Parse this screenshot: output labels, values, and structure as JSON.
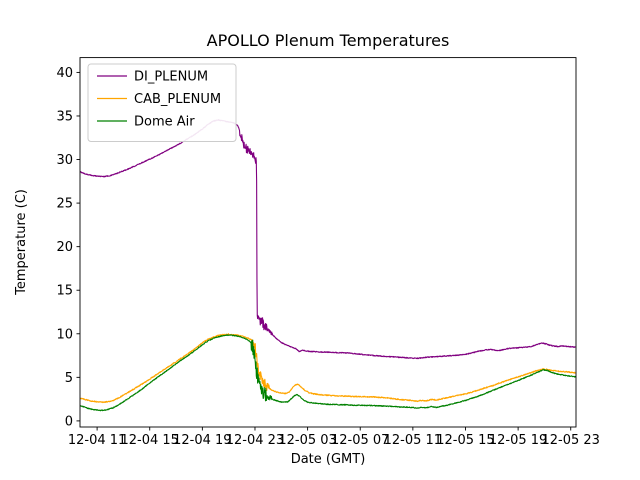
{
  "chart_data": {
    "type": "line",
    "title": "APOLLO Plenum Temperatures",
    "xlabel": "Date (GMT)",
    "ylabel": "Temperature (C)",
    "xlim": [
      -1.3,
      36.4
    ],
    "ylim": [
      -0.7,
      41.7
    ],
    "grid": false,
    "legend_position": "upper-left",
    "y_ticks": [
      0,
      5,
      10,
      15,
      20,
      25,
      30,
      35,
      40
    ],
    "x_ticks": [
      {
        "t": 0,
        "label": "12-04 11"
      },
      {
        "t": 4,
        "label": "12-04 15"
      },
      {
        "t": 8,
        "label": "12-04 19"
      },
      {
        "t": 12,
        "label": "12-04 23"
      },
      {
        "t": 16,
        "label": "12-05 03"
      },
      {
        "t": 20,
        "label": "12-05 07"
      },
      {
        "t": 24,
        "label": "12-05 11"
      },
      {
        "t": 28,
        "label": "12-05 15"
      },
      {
        "t": 32,
        "label": "12-05 19"
      },
      {
        "t": 36,
        "label": "12-05 23"
      }
    ],
    "series": [
      {
        "name": "DI_PLENUM",
        "color": "#800080",
        "base_noise": 0.05,
        "noise": [
          {
            "t0": 10.85,
            "t1": 12.12,
            "amp": 0.5
          },
          {
            "t0": 12.16,
            "t1": 12.9,
            "amp": 0.6
          },
          {
            "t0": 12.9,
            "t1": 13.4,
            "amp": 0.25
          }
        ],
        "anchors": [
          [
            -1.3,
            28.6
          ],
          [
            -0.9,
            28.35
          ],
          [
            -0.5,
            28.2
          ],
          [
            0,
            28.1
          ],
          [
            0.5,
            28.05
          ],
          [
            1,
            28.15
          ],
          [
            1.5,
            28.4
          ],
          [
            2,
            28.7
          ],
          [
            2.5,
            29.0
          ],
          [
            3,
            29.35
          ],
          [
            3.5,
            29.7
          ],
          [
            4,
            30.05
          ],
          [
            4.5,
            30.4
          ],
          [
            5,
            30.8
          ],
          [
            5.5,
            31.2
          ],
          [
            6,
            31.6
          ],
          [
            6.5,
            32.0
          ],
          [
            7,
            32.5
          ],
          [
            7.5,
            32.95
          ],
          [
            8,
            33.5
          ],
          [
            8.4,
            34.0
          ],
          [
            8.8,
            34.4
          ],
          [
            9.2,
            34.55
          ],
          [
            9.6,
            34.45
          ],
          [
            10,
            34.3
          ],
          [
            10.4,
            34.2
          ],
          [
            10.7,
            33.9
          ],
          [
            10.9,
            33.0
          ],
          [
            11.1,
            31.8
          ],
          [
            11.3,
            31.3
          ],
          [
            11.6,
            30.8
          ],
          [
            11.9,
            30.3
          ],
          [
            12.05,
            29.9
          ],
          [
            12.12,
            29.7
          ],
          [
            12.16,
            11.9
          ],
          [
            12.3,
            11.3
          ],
          [
            12.5,
            11.6
          ],
          [
            12.7,
            10.9
          ],
          [
            12.9,
            10.6
          ],
          [
            13.2,
            10.1
          ],
          [
            13.6,
            9.5
          ],
          [
            14,
            9.0
          ],
          [
            14.4,
            8.7
          ],
          [
            14.8,
            8.45
          ],
          [
            15.1,
            8.3
          ],
          [
            15.35,
            7.95
          ],
          [
            15.6,
            8.1
          ],
          [
            16,
            8.0
          ],
          [
            16.5,
            7.95
          ],
          [
            17,
            7.9
          ],
          [
            17.5,
            7.9
          ],
          [
            18,
            7.85
          ],
          [
            19,
            7.8
          ],
          [
            20,
            7.65
          ],
          [
            21,
            7.5
          ],
          [
            22,
            7.4
          ],
          [
            23,
            7.3
          ],
          [
            24,
            7.2
          ],
          [
            24.5,
            7.2
          ],
          [
            25,
            7.3
          ],
          [
            26,
            7.4
          ],
          [
            27,
            7.5
          ],
          [
            27.5,
            7.55
          ],
          [
            28,
            7.65
          ],
          [
            28.5,
            7.8
          ],
          [
            29,
            8.0
          ],
          [
            29.5,
            8.15
          ],
          [
            30,
            8.2
          ],
          [
            30.4,
            8.05
          ],
          [
            30.8,
            8.15
          ],
          [
            31.2,
            8.3
          ],
          [
            31.6,
            8.35
          ],
          [
            32,
            8.4
          ],
          [
            32.5,
            8.45
          ],
          [
            33,
            8.55
          ],
          [
            33.4,
            8.75
          ],
          [
            33.8,
            8.95
          ],
          [
            34.1,
            8.85
          ],
          [
            34.4,
            8.7
          ],
          [
            34.7,
            8.6
          ],
          [
            35,
            8.55
          ],
          [
            35.4,
            8.6
          ],
          [
            35.8,
            8.55
          ],
          [
            36.1,
            8.5
          ],
          [
            36.4,
            8.45
          ]
        ]
      },
      {
        "name": "CAB_PLENUM",
        "color": "#FFA500",
        "base_noise": 0.06,
        "noise": [
          {
            "t0": 11.8,
            "t1": 13.1,
            "amp": 0.55
          }
        ],
        "anchors": [
          [
            -1.3,
            2.6
          ],
          [
            -0.9,
            2.45
          ],
          [
            -0.5,
            2.3
          ],
          [
            0,
            2.2
          ],
          [
            0.4,
            2.15
          ],
          [
            0.8,
            2.2
          ],
          [
            1.2,
            2.35
          ],
          [
            1.6,
            2.6
          ],
          [
            2,
            2.95
          ],
          [
            2.5,
            3.4
          ],
          [
            3,
            3.85
          ],
          [
            3.5,
            4.3
          ],
          [
            4,
            4.8
          ],
          [
            4.5,
            5.3
          ],
          [
            5,
            5.8
          ],
          [
            5.5,
            6.3
          ],
          [
            6,
            6.8
          ],
          [
            6.5,
            7.3
          ],
          [
            7,
            7.8
          ],
          [
            7.5,
            8.35
          ],
          [
            8,
            8.95
          ],
          [
            8.4,
            9.35
          ],
          [
            8.8,
            9.6
          ],
          [
            9.2,
            9.8
          ],
          [
            9.6,
            9.9
          ],
          [
            10,
            9.95
          ],
          [
            10.4,
            9.9
          ],
          [
            10.8,
            9.8
          ],
          [
            11.2,
            9.65
          ],
          [
            11.5,
            9.5
          ],
          [
            11.8,
            9.2
          ],
          [
            12,
            8.6
          ],
          [
            12.1,
            7.5
          ],
          [
            12.2,
            6.2
          ],
          [
            12.35,
            5.4
          ],
          [
            12.5,
            4.9
          ],
          [
            12.7,
            4.4
          ],
          [
            12.9,
            4.0
          ],
          [
            13.1,
            3.7
          ],
          [
            13.4,
            3.45
          ],
          [
            13.7,
            3.3
          ],
          [
            14,
            3.2
          ],
          [
            14.3,
            3.15
          ],
          [
            14.6,
            3.3
          ],
          [
            14.9,
            3.9
          ],
          [
            15.1,
            4.15
          ],
          [
            15.3,
            4.2
          ],
          [
            15.5,
            3.9
          ],
          [
            15.8,
            3.5
          ],
          [
            16.1,
            3.25
          ],
          [
            16.5,
            3.1
          ],
          [
            17,
            3.0
          ],
          [
            17.5,
            2.95
          ],
          [
            18,
            2.9
          ],
          [
            18.5,
            2.85
          ],
          [
            19,
            2.85
          ],
          [
            19.5,
            2.8
          ],
          [
            20,
            2.8
          ],
          [
            20.5,
            2.75
          ],
          [
            21,
            2.75
          ],
          [
            21.5,
            2.7
          ],
          [
            22,
            2.65
          ],
          [
            22.5,
            2.55
          ],
          [
            23,
            2.45
          ],
          [
            23.5,
            2.4
          ],
          [
            24,
            2.35
          ],
          [
            24.3,
            2.25
          ],
          [
            24.6,
            2.35
          ],
          [
            25,
            2.3
          ],
          [
            25.4,
            2.45
          ],
          [
            25.8,
            2.4
          ],
          [
            26.2,
            2.55
          ],
          [
            26.6,
            2.65
          ],
          [
            27,
            2.8
          ],
          [
            27.5,
            2.95
          ],
          [
            28,
            3.1
          ],
          [
            28.5,
            3.3
          ],
          [
            29,
            3.55
          ],
          [
            29.5,
            3.8
          ],
          [
            30,
            4.0
          ],
          [
            30.5,
            4.3
          ],
          [
            31,
            4.55
          ],
          [
            31.5,
            4.8
          ],
          [
            32,
            5.05
          ],
          [
            32.5,
            5.3
          ],
          [
            33,
            5.55
          ],
          [
            33.5,
            5.8
          ],
          [
            33.9,
            5.95
          ],
          [
            34.2,
            5.9
          ],
          [
            34.5,
            5.8
          ],
          [
            34.8,
            5.75
          ],
          [
            35.1,
            5.7
          ],
          [
            35.5,
            5.65
          ],
          [
            35.9,
            5.6
          ],
          [
            36.2,
            5.55
          ],
          [
            36.4,
            5.5
          ]
        ]
      },
      {
        "name": "Dome Air",
        "color": "#008000",
        "base_noise": 0.05,
        "noise": [
          {
            "t0": 11.7,
            "t1": 12.9,
            "amp": 0.8
          },
          {
            "t0": 12.9,
            "t1": 13.3,
            "amp": 0.3
          }
        ],
        "anchors": [
          [
            -1.3,
            1.75
          ],
          [
            -0.9,
            1.55
          ],
          [
            -0.5,
            1.35
          ],
          [
            0,
            1.25
          ],
          [
            0.4,
            1.2
          ],
          [
            0.8,
            1.3
          ],
          [
            1.2,
            1.5
          ],
          [
            1.6,
            1.8
          ],
          [
            2,
            2.2
          ],
          [
            2.5,
            2.7
          ],
          [
            3,
            3.2
          ],
          [
            3.5,
            3.75
          ],
          [
            4,
            4.35
          ],
          [
            4.5,
            4.9
          ],
          [
            5,
            5.45
          ],
          [
            5.5,
            6.0
          ],
          [
            6,
            6.55
          ],
          [
            6.5,
            7.1
          ],
          [
            7,
            7.6
          ],
          [
            7.5,
            8.15
          ],
          [
            8,
            8.75
          ],
          [
            8.4,
            9.15
          ],
          [
            8.8,
            9.45
          ],
          [
            9.2,
            9.65
          ],
          [
            9.6,
            9.8
          ],
          [
            10,
            9.85
          ],
          [
            10.4,
            9.8
          ],
          [
            10.8,
            9.7
          ],
          [
            11.1,
            9.55
          ],
          [
            11.4,
            9.35
          ],
          [
            11.7,
            9.0
          ],
          [
            11.9,
            8.2
          ],
          [
            12.0,
            7.0
          ],
          [
            12.1,
            5.8
          ],
          [
            12.25,
            4.8
          ],
          [
            12.4,
            4.0
          ],
          [
            12.6,
            3.4
          ],
          [
            12.8,
            3.0
          ],
          [
            13,
            2.75
          ],
          [
            13.3,
            2.5
          ],
          [
            13.6,
            2.35
          ],
          [
            13.9,
            2.2
          ],
          [
            14.2,
            2.15
          ],
          [
            14.5,
            2.2
          ],
          [
            14.8,
            2.6
          ],
          [
            15.0,
            2.9
          ],
          [
            15.2,
            3.0
          ],
          [
            15.4,
            2.8
          ],
          [
            15.7,
            2.4
          ],
          [
            16,
            2.15
          ],
          [
            16.4,
            2.05
          ],
          [
            16.8,
            2.0
          ],
          [
            17.2,
            1.95
          ],
          [
            17.6,
            1.9
          ],
          [
            18,
            1.9
          ],
          [
            18.5,
            1.85
          ],
          [
            19,
            1.85
          ],
          [
            19.5,
            1.8
          ],
          [
            20,
            1.8
          ],
          [
            20.5,
            1.78
          ],
          [
            21,
            1.75
          ],
          [
            21.5,
            1.72
          ],
          [
            22,
            1.7
          ],
          [
            22.5,
            1.65
          ],
          [
            23,
            1.6
          ],
          [
            23.5,
            1.58
          ],
          [
            24,
            1.55
          ],
          [
            24.3,
            1.45
          ],
          [
            24.6,
            1.55
          ],
          [
            25,
            1.5
          ],
          [
            25.4,
            1.65
          ],
          [
            25.8,
            1.55
          ],
          [
            26.2,
            1.7
          ],
          [
            26.6,
            1.8
          ],
          [
            27,
            1.95
          ],
          [
            27.5,
            2.15
          ],
          [
            28,
            2.35
          ],
          [
            28.5,
            2.6
          ],
          [
            29,
            2.85
          ],
          [
            29.5,
            3.15
          ],
          [
            30,
            3.45
          ],
          [
            30.5,
            3.75
          ],
          [
            31,
            4.05
          ],
          [
            31.5,
            4.35
          ],
          [
            32,
            4.65
          ],
          [
            32.5,
            4.95
          ],
          [
            33,
            5.25
          ],
          [
            33.5,
            5.6
          ],
          [
            33.9,
            5.85
          ],
          [
            34.2,
            5.8
          ],
          [
            34.5,
            5.6
          ],
          [
            34.8,
            5.45
          ],
          [
            35.1,
            5.35
          ],
          [
            35.5,
            5.25
          ],
          [
            35.9,
            5.15
          ],
          [
            36.2,
            5.1
          ],
          [
            36.4,
            5.05
          ]
        ]
      }
    ]
  }
}
